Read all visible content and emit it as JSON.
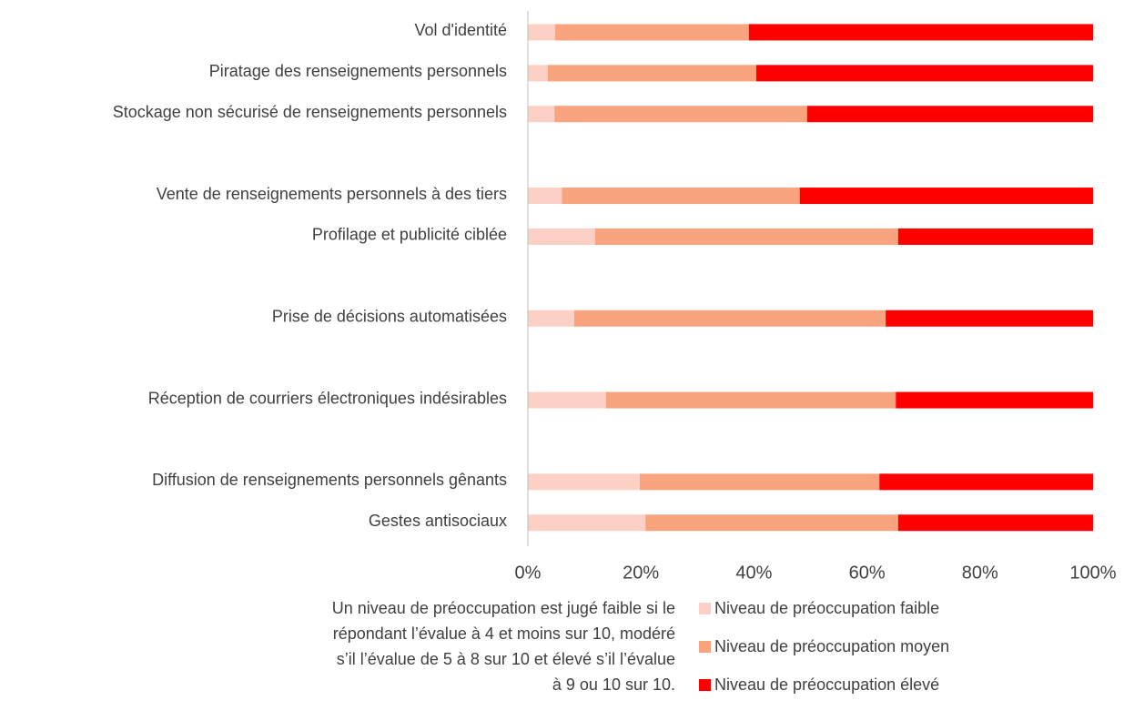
{
  "chart_data": {
    "type": "stacked_barh",
    "categories": [
      "Vol d'identité",
      "Piratage des renseignements personnels",
      "Stockage non sécurisé de renseignements personnels",
      null,
      "Vente de renseignements personnels à des tiers",
      "Profilage et publicité ciblée",
      null,
      "Prise de décisions automatisées",
      null,
      "Réception de courriers électroniques indésirables",
      null,
      "Diffusion de renseignements personnels gênants",
      "Gestes antisociaux"
    ],
    "series": [
      {
        "name": "Niveau de préoccupation faible",
        "color": "#fcd0c4",
        "values": [
          4.8,
          3.5,
          4.7,
          null,
          6.0,
          11.9,
          null,
          8.2,
          null,
          13.8,
          null,
          19.8,
          20.8
        ]
      },
      {
        "name": "Niveau de préoccupation moyen",
        "color": "#f9a47e",
        "values": [
          34.3,
          36.9,
          44.7,
          null,
          42.1,
          53.6,
          null,
          55.1,
          null,
          51.3,
          null,
          42.4,
          44.7
        ]
      },
      {
        "name": "Niveau de préoccupation élevé",
        "color": "#ff0000",
        "values": [
          60.9,
          59.6,
          50.6,
          null,
          51.9,
          34.5,
          null,
          36.7,
          null,
          34.9,
          null,
          37.8,
          34.5
        ]
      }
    ],
    "xlim": [
      0,
      100
    ],
    "xticks": [
      {
        "value": 0,
        "label": "0%"
      },
      {
        "value": 20,
        "label": "20%"
      },
      {
        "value": 40,
        "label": "40%"
      },
      {
        "value": 60,
        "label": "60%"
      },
      {
        "value": 80,
        "label": "80%"
      },
      {
        "value": 100,
        "label": "100%"
      }
    ],
    "note": [
      "Un niveau de préoccupation est jugé faible si le",
      "répondant l’évalue à 4 et moins sur 10, modéré",
      "s’il l’évalue de 5 à 8 sur 10 et élevé s’il l’évalue",
      "à 9 ou 10 sur 10."
    ],
    "legend": "bottom-right"
  }
}
